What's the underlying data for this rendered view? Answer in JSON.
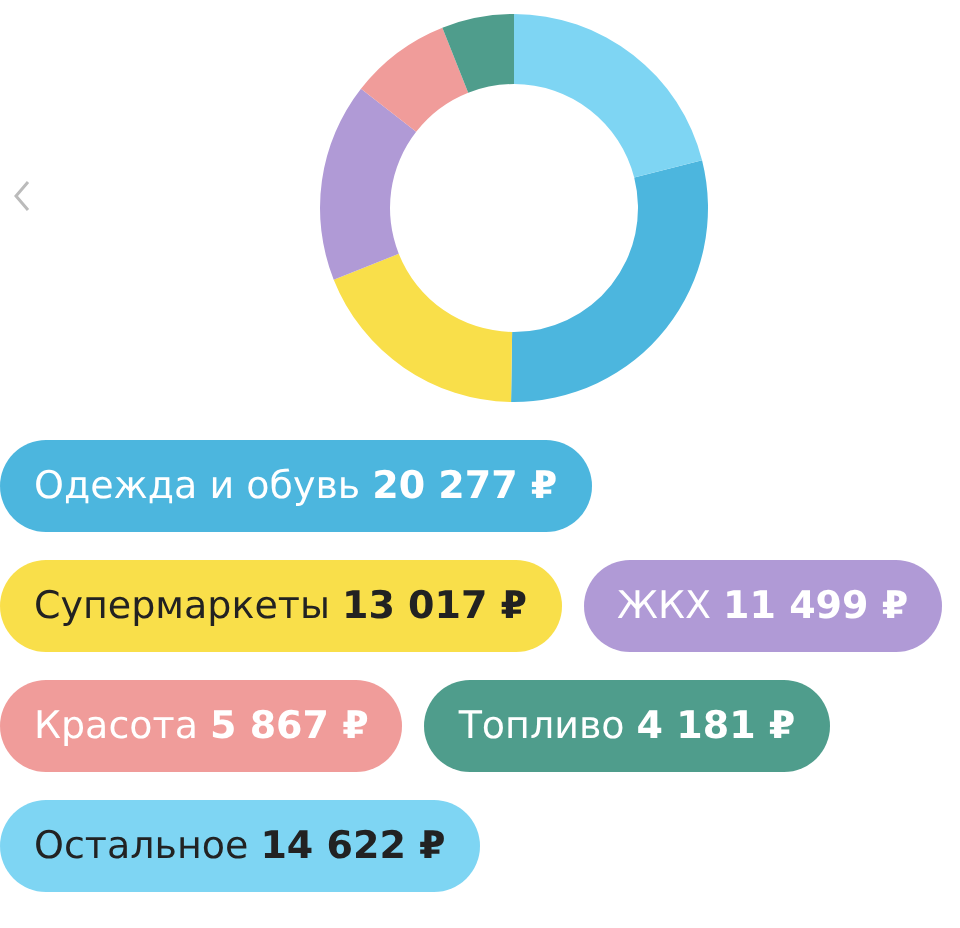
{
  "chart_data": {
    "type": "donut",
    "categories": [
      "Одежда и обувь",
      "Супермаркеты",
      "ЖКХ",
      "Красота",
      "Топливо",
      "Остальное"
    ],
    "values": [
      20277,
      13017,
      11499,
      5867,
      4181,
      14622
    ],
    "value_labels": [
      "20 277 ₽",
      "13 017 ₽",
      "11 499 ₽",
      "5 867 ₽",
      "4 181 ₽",
      "14 622 ₽"
    ],
    "colors": [
      "#4cb6de",
      "#f9df4a",
      "#b09ad6",
      "#f09c9a",
      "#4f9d8c",
      "#7ed5f3"
    ],
    "legend": "bottom"
  }
}
